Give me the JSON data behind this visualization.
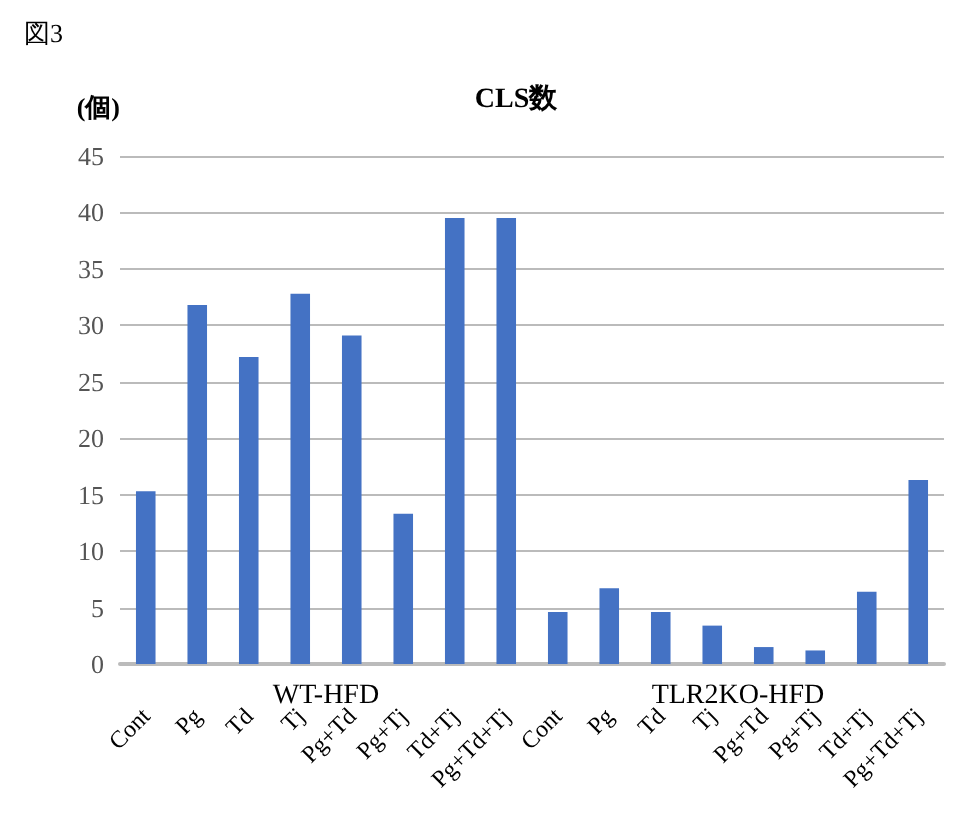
{
  "chart_data": {
    "type": "bar",
    "title": "CLS数",
    "ylabel": "(個)",
    "annotations": [
      "図3",
      "WT-HFD",
      "TLR2KO-HFD"
    ],
    "categories": [
      "Cont",
      "Pg",
      "Td",
      "Tj",
      "Pg+Td",
      "Pg+Tj",
      "Td+Tj",
      "Pg+Td+Tj",
      "Cont",
      "Pg",
      "Td",
      "Tj",
      "Pg+Td",
      "Pg+Tj",
      "Td+Tj",
      "Pg+Td+Tj"
    ],
    "values": [
      15.3,
      31.8,
      27.2,
      32.8,
      29.1,
      13.3,
      39.5,
      39.5,
      4.6,
      6.7,
      4.6,
      3.4,
      1.5,
      1.2,
      6.4,
      16.3
    ],
    "color": "#4472c4",
    "ylim": [
      0,
      45
    ],
    "yticks": [
      0,
      5,
      10,
      15,
      20,
      25,
      30,
      35,
      40,
      45
    ],
    "grid": true
  }
}
